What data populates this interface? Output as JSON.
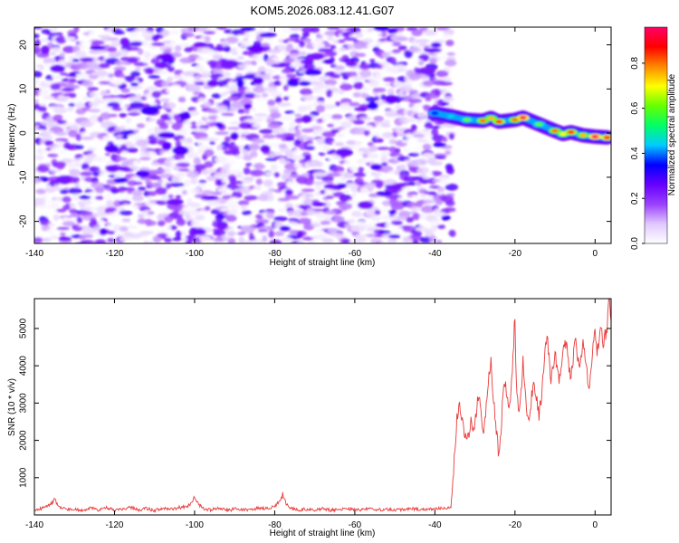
{
  "chart_data": [
    {
      "type": "heatmap",
      "title": "KOM5.2026.083.12.41.G07",
      "xlabel": "Height of straight line (km)",
      "ylabel": "Frequency (Hz)",
      "xlim": [
        -140,
        4
      ],
      "ylim": [
        -25,
        24
      ],
      "xticks": [
        -140,
        -120,
        -100,
        -80,
        -60,
        -40,
        -20,
        0
      ],
      "xtick_labels": [
        "-140",
        "-120",
        "-100",
        "-80",
        "-60",
        "-40",
        "-20",
        "0"
      ],
      "yticks": [
        -20,
        -10,
        0,
        10,
        20
      ],
      "ytick_labels": [
        "-20",
        "-10",
        "0",
        "10",
        "20"
      ],
      "noise_region_x": [
        -140,
        -36
      ],
      "noise_amplitude_range": [
        0.0,
        0.3
      ],
      "signal_track": [
        {
          "x": -40,
          "f": 4.5,
          "a": 0.35
        },
        {
          "x": -36,
          "f": 3.8,
          "a": 0.45
        },
        {
          "x": -32,
          "f": 3.0,
          "a": 0.6
        },
        {
          "x": -28,
          "f": 2.8,
          "a": 0.8
        },
        {
          "x": -26,
          "f": 3.4,
          "a": 0.75
        },
        {
          "x": -24,
          "f": 2.6,
          "a": 0.85
        },
        {
          "x": -20,
          "f": 3.0,
          "a": 0.8
        },
        {
          "x": -18,
          "f": 3.5,
          "a": 0.95
        },
        {
          "x": -14,
          "f": 2.0,
          "a": 0.6
        },
        {
          "x": -10,
          "f": 0.5,
          "a": 0.8
        },
        {
          "x": -8,
          "f": -0.2,
          "a": 0.7
        },
        {
          "x": -6,
          "f": 0.2,
          "a": 0.85
        },
        {
          "x": -3,
          "f": -0.5,
          "a": 0.75
        },
        {
          "x": 0,
          "f": -0.8,
          "a": 0.95
        },
        {
          "x": 3,
          "f": -1.0,
          "a": 0.9
        }
      ],
      "colorbar": {
        "label": "Normalized spectral amplitude",
        "ticks": [
          0.0,
          0.2,
          0.4,
          0.6,
          0.8
        ],
        "tick_labels": [
          "0.0",
          "0.2",
          "0.4",
          "0.6",
          "0.8"
        ],
        "range": [
          0,
          0.96
        ],
        "colors": [
          "#ffffff",
          "#e0c8ff",
          "#9b40ff",
          "#6600ff",
          "#0000ff",
          "#00ccff",
          "#00ff66",
          "#66ff00",
          "#ffff00",
          "#ff8800",
          "#ff0000",
          "#ff0066"
        ]
      }
    },
    {
      "type": "line",
      "xlabel": "Height of straight line (km)",
      "ylabel": "SNR (10 * v/v)",
      "xlim": [
        -140,
        4
      ],
      "ylim": [
        0,
        5800
      ],
      "xticks": [
        -140,
        -120,
        -100,
        -80,
        -60,
        -40,
        -20,
        0
      ],
      "xtick_labels": [
        "-140",
        "-120",
        "-100",
        "-80",
        "-60",
        "-40",
        "-20",
        "0"
      ],
      "yticks": [
        1000,
        2000,
        3000,
        4000,
        5000
      ],
      "ytick_labels": [
        "1000",
        "2000",
        "3000",
        "4000",
        "5000"
      ],
      "color": "#e83a3a",
      "series": [
        {
          "name": "SNR",
          "points": [
            [
              -140,
              110
            ],
            [
              -138,
              180
            ],
            [
              -136,
              260
            ],
            [
              -135,
              420
            ],
            [
              -134,
              230
            ],
            [
              -132,
              150
            ],
            [
              -130,
              170
            ],
            [
              -128,
              120
            ],
            [
              -126,
              180
            ],
            [
              -124,
              140
            ],
            [
              -122,
              200
            ],
            [
              -120,
              130
            ],
            [
              -118,
              160
            ],
            [
              -116,
              210
            ],
            [
              -114,
              140
            ],
            [
              -112,
              180
            ],
            [
              -110,
              120
            ],
            [
              -108,
              190
            ],
            [
              -106,
              150
            ],
            [
              -104,
              200
            ],
            [
              -102,
              210
            ],
            [
              -101,
              300
            ],
            [
              -100,
              480
            ],
            [
              -99,
              300
            ],
            [
              -98,
              170
            ],
            [
              -96,
              140
            ],
            [
              -94,
              180
            ],
            [
              -92,
              120
            ],
            [
              -90,
              160
            ],
            [
              -88,
              130
            ],
            [
              -86,
              150
            ],
            [
              -84,
              180
            ],
            [
              -82,
              190
            ],
            [
              -80,
              210
            ],
            [
              -79,
              350
            ],
            [
              -78,
              500
            ],
            [
              -77,
              280
            ],
            [
              -76,
              170
            ],
            [
              -74,
              130
            ],
            [
              -72,
              150
            ],
            [
              -70,
              120
            ],
            [
              -68,
              160
            ],
            [
              -66,
              130
            ],
            [
              -64,
              140
            ],
            [
              -62,
              180
            ],
            [
              -60,
              130
            ],
            [
              -58,
              150
            ],
            [
              -56,
              170
            ],
            [
              -54,
              140
            ],
            [
              -52,
              160
            ],
            [
              -50,
              120
            ],
            [
              -48,
              150
            ],
            [
              -46,
              170
            ],
            [
              -44,
              140
            ],
            [
              -42,
              160
            ],
            [
              -40,
              150
            ],
            [
              -38,
              180
            ],
            [
              -36,
              220
            ],
            [
              -35.5,
              800
            ],
            [
              -35,
              1800
            ],
            [
              -34.5,
              2600
            ],
            [
              -34,
              3000
            ],
            [
              -33.5,
              2700
            ],
            [
              -33,
              2500
            ],
            [
              -32.5,
              2200
            ],
            [
              -32,
              1900
            ],
            [
              -31.5,
              2200
            ],
            [
              -31,
              2500
            ],
            [
              -30.5,
              2100
            ],
            [
              -30,
              2400
            ],
            [
              -29.5,
              2900
            ],
            [
              -29,
              3300
            ],
            [
              -28.5,
              2700
            ],
            [
              -28,
              2200
            ],
            [
              -27.5,
              2500
            ],
            [
              -27,
              3100
            ],
            [
              -26.5,
              3700
            ],
            [
              -26,
              4100
            ],
            [
              -25.5,
              3300
            ],
            [
              -25,
              2700
            ],
            [
              -24.5,
              2100
            ],
            [
              -24,
              1500
            ],
            [
              -23.5,
              2300
            ],
            [
              -23,
              3200
            ],
            [
              -22.5,
              3600
            ],
            [
              -22,
              3100
            ],
            [
              -21.5,
              2900
            ],
            [
              -21,
              3300
            ],
            [
              -20.5,
              4200
            ],
            [
              -20,
              5400
            ],
            [
              -19.8,
              4100
            ],
            [
              -19.5,
              3200
            ],
            [
              -19,
              2800
            ],
            [
              -18.5,
              3300
            ],
            [
              -18,
              4100
            ],
            [
              -17.5,
              3500
            ],
            [
              -17,
              2700
            ],
            [
              -16.5,
              2500
            ],
            [
              -16,
              3000
            ],
            [
              -15.5,
              3500
            ],
            [
              -15,
              3300
            ],
            [
              -14.5,
              3000
            ],
            [
              -14,
              2700
            ],
            [
              -13.5,
              3100
            ],
            [
              -13,
              3600
            ],
            [
              -12.5,
              4300
            ],
            [
              -12,
              4800
            ],
            [
              -11.5,
              4200
            ],
            [
              -11,
              3600
            ],
            [
              -10.5,
              3900
            ],
            [
              -10,
              4400
            ],
            [
              -9.5,
              4000
            ],
            [
              -9,
              3500
            ],
            [
              -8.5,
              3800
            ],
            [
              -8,
              4300
            ],
            [
              -7.5,
              4700
            ],
            [
              -7,
              4400
            ],
            [
              -6.5,
              3900
            ],
            [
              -6,
              3700
            ],
            [
              -5.5,
              4200
            ],
            [
              -5,
              4700
            ],
            [
              -4.5,
              4400
            ],
            [
              -4,
              3900
            ],
            [
              -3.5,
              4200
            ],
            [
              -3,
              4600
            ],
            [
              -2.5,
              4300
            ],
            [
              -2,
              3800
            ],
            [
              -1.5,
              3400
            ],
            [
              -1,
              3900
            ],
            [
              -0.5,
              4500
            ],
            [
              0,
              5000
            ],
            [
              0.5,
              4300
            ],
            [
              1,
              4800
            ],
            [
              1.5,
              5100
            ],
            [
              2,
              4400
            ],
            [
              2.5,
              4800
            ],
            [
              3,
              5000
            ],
            [
              3.5,
              5800
            ],
            [
              4,
              5200
            ]
          ]
        }
      ]
    }
  ]
}
